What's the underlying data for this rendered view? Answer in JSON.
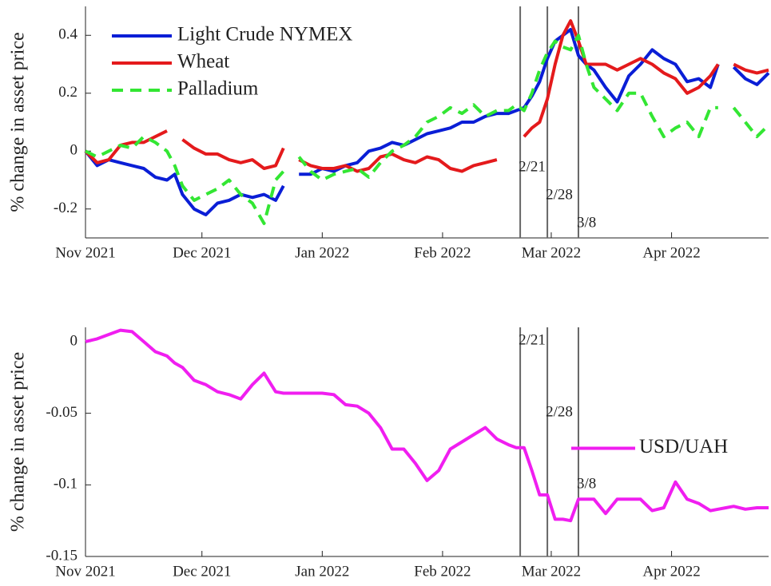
{
  "chart_data": [
    {
      "type": "line",
      "ylabel": "% change in asset price",
      "x": [
        0,
        3,
        6,
        9,
        12,
        15,
        18,
        21,
        23,
        25,
        28,
        31,
        34,
        37,
        40,
        43,
        46,
        49,
        51,
        53,
        55,
        58,
        61,
        64,
        67,
        70,
        73,
        76,
        79,
        82,
        85,
        88,
        91,
        94,
        97,
        100,
        103,
        106,
        109,
        111,
        113,
        115,
        117,
        119,
        121,
        123,
        125,
        127,
        129,
        131,
        134,
        137,
        140,
        143,
        146,
        149,
        152,
        155,
        158,
        161,
        163,
        165,
        167,
        170,
        173,
        176
      ],
      "xlim": [
        0,
        176
      ],
      "xticks": [
        {
          "value": 0,
          "label": "Nov 2021"
        },
        {
          "value": 30,
          "label": "Dec 2021"
        },
        {
          "value": 61,
          "label": "Jan 2022"
        },
        {
          "value": 92,
          "label": "Feb 2022"
        },
        {
          "value": 120,
          "label": "Mar 2022"
        },
        {
          "value": 151,
          "label": "Apr 2022"
        }
      ],
      "ylim": [
        -0.3,
        0.5
      ],
      "yticks": [
        -0.2,
        0,
        0.2,
        0.4
      ],
      "legend": "upper left",
      "vlines": [
        {
          "x": 112,
          "label": "2/21"
        },
        {
          "x": 119,
          "label": "2/28"
        },
        {
          "x": 127,
          "label": "3/8"
        }
      ],
      "series": [
        {
          "name": "Light Crude NYMEX",
          "color": "#0a1ed6",
          "style": "solid",
          "values": [
            0,
            -0.05,
            -0.03,
            -0.04,
            -0.05,
            -0.06,
            -0.09,
            -0.1,
            -0.08,
            -0.15,
            -0.2,
            -0.22,
            -0.18,
            -0.17,
            -0.15,
            -0.16,
            -0.15,
            -0.17,
            -0.12,
            null,
            -0.08,
            -0.08,
            -0.06,
            -0.07,
            -0.05,
            -0.04,
            0.0,
            0.01,
            0.03,
            0.02,
            0.04,
            0.06,
            0.07,
            0.08,
            0.1,
            0.1,
            0.12,
            0.13,
            0.13,
            0.14,
            0.15,
            0.19,
            0.24,
            0.32,
            0.38,
            0.4,
            0.42,
            0.33,
            0.3,
            0.28,
            0.22,
            0.17,
            0.26,
            0.3,
            0.35,
            0.32,
            0.3,
            0.24,
            0.25,
            0.22,
            0.3,
            null,
            0.29,
            0.25,
            0.23,
            0.27
          ]
        },
        {
          "name": "Wheat",
          "color": "#e41a1c",
          "style": "solid",
          "values": [
            0,
            -0.04,
            -0.03,
            0.02,
            0.03,
            0.03,
            0.05,
            0.07,
            null,
            0.04,
            0.01,
            -0.01,
            -0.01,
            -0.03,
            -0.04,
            -0.03,
            -0.06,
            -0.05,
            0.01,
            null,
            -0.03,
            -0.05,
            -0.06,
            -0.06,
            -0.05,
            -0.07,
            -0.06,
            -0.02,
            -0.01,
            -0.03,
            -0.04,
            -0.02,
            -0.03,
            -0.06,
            -0.07,
            -0.05,
            -0.04,
            -0.03,
            null,
            null,
            0.05,
            0.08,
            0.1,
            0.18,
            0.3,
            0.4,
            0.45,
            0.38,
            0.3,
            0.3,
            0.3,
            0.28,
            0.3,
            0.32,
            0.3,
            0.27,
            0.25,
            0.2,
            0.22,
            0.26,
            0.3,
            null,
            0.3,
            0.28,
            0.27,
            0.28
          ]
        },
        {
          "name": "Palladium",
          "color": "#33e633",
          "style": "dashed",
          "values": [
            0,
            -0.02,
            0.0,
            0.02,
            0.01,
            0.05,
            0.03,
            0.0,
            -0.05,
            -0.12,
            -0.17,
            -0.15,
            -0.13,
            -0.1,
            -0.15,
            -0.18,
            -0.25,
            -0.1,
            -0.07,
            null,
            -0.02,
            -0.07,
            -0.1,
            -0.08,
            -0.07,
            -0.06,
            -0.09,
            -0.04,
            0.0,
            0.02,
            0.05,
            0.1,
            0.12,
            0.15,
            0.13,
            0.16,
            0.12,
            0.14,
            0.14,
            0.16,
            0.14,
            0.2,
            0.28,
            0.34,
            0.38,
            0.36,
            0.35,
            0.4,
            0.3,
            0.22,
            0.18,
            0.14,
            0.2,
            0.2,
            0.12,
            0.05,
            0.08,
            0.1,
            0.05,
            0.15,
            0.15,
            null,
            0.15,
            0.1,
            0.05,
            0.09
          ]
        }
      ]
    },
    {
      "type": "line",
      "ylabel": "% change in asset price",
      "x": [
        0,
        3,
        6,
        9,
        12,
        15,
        18,
        21,
        23,
        25,
        28,
        31,
        34,
        37,
        40,
        43,
        46,
        49,
        51,
        53,
        55,
        58,
        61,
        64,
        67,
        70,
        73,
        76,
        79,
        82,
        85,
        88,
        91,
        94,
        97,
        100,
        103,
        106,
        109,
        111,
        113,
        115,
        117,
        119,
        121,
        123,
        125,
        127,
        129,
        131,
        134,
        137,
        140,
        143,
        146,
        149,
        152,
        155,
        158,
        161,
        163,
        165,
        167,
        170,
        173,
        176
      ],
      "xlim": [
        0,
        176
      ],
      "xticks": [
        {
          "value": 0,
          "label": "Nov 2021"
        },
        {
          "value": 30,
          "label": "Dec 2021"
        },
        {
          "value": 61,
          "label": "Jan 2022"
        },
        {
          "value": 92,
          "label": "Feb 2022"
        },
        {
          "value": 120,
          "label": "Mar 2022"
        },
        {
          "value": 151,
          "label": "Apr 2022"
        }
      ],
      "ylim": [
        -0.15,
        0.01
      ],
      "yticks": [
        -0.15,
        -0.1,
        -0.05,
        0
      ],
      "legend": "right",
      "vlines": [
        {
          "x": 112,
          "label": "2/21"
        },
        {
          "x": 119,
          "label": "2/28"
        },
        {
          "x": 127,
          "label": "3/8"
        }
      ],
      "series": [
        {
          "name": "USD/UAH",
          "color": "#f01ef0",
          "style": "solid",
          "values": [
            0,
            0.002,
            0.005,
            0.008,
            0.007,
            0.0,
            -0.007,
            -0.01,
            -0.015,
            -0.018,
            -0.027,
            -0.03,
            -0.035,
            -0.037,
            -0.04,
            -0.03,
            -0.022,
            -0.035,
            -0.036,
            -0.036,
            -0.036,
            -0.036,
            -0.036,
            -0.037,
            -0.044,
            -0.045,
            -0.05,
            -0.06,
            -0.075,
            -0.075,
            -0.085,
            -0.097,
            -0.09,
            -0.075,
            -0.07,
            -0.065,
            -0.06,
            -0.068,
            -0.072,
            -0.074,
            -0.074,
            -0.09,
            -0.107,
            -0.107,
            -0.124,
            -0.124,
            -0.125,
            -0.11,
            -0.11,
            -0.11,
            -0.12,
            -0.11,
            -0.11,
            -0.11,
            -0.118,
            -0.116,
            -0.098,
            -0.11,
            -0.113,
            -0.118,
            -0.117,
            -0.116,
            -0.115,
            -0.117,
            -0.116,
            -0.116
          ]
        }
      ]
    }
  ]
}
